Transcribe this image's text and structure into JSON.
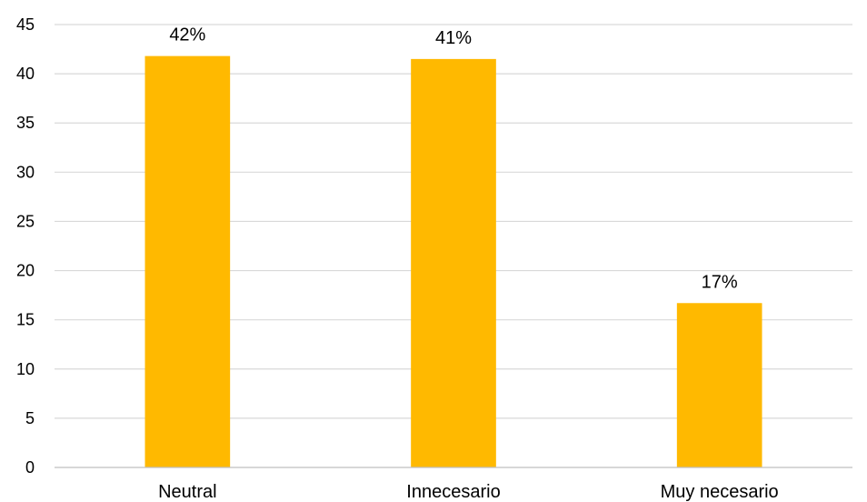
{
  "chart_data": {
    "type": "bar",
    "categories": [
      "Neutral",
      "Innecesario",
      "Muy necesario"
    ],
    "values": [
      41.8,
      41.5,
      16.7
    ],
    "data_labels": [
      "42%",
      "41%",
      "17%"
    ],
    "title": "",
    "xlabel": "",
    "ylabel": "",
    "ylim": [
      0,
      45
    ],
    "yticks": [
      0,
      5,
      10,
      15,
      20,
      25,
      30,
      35,
      40,
      45
    ],
    "grid": true,
    "legend": "none",
    "bar_color": "#ffb900"
  }
}
